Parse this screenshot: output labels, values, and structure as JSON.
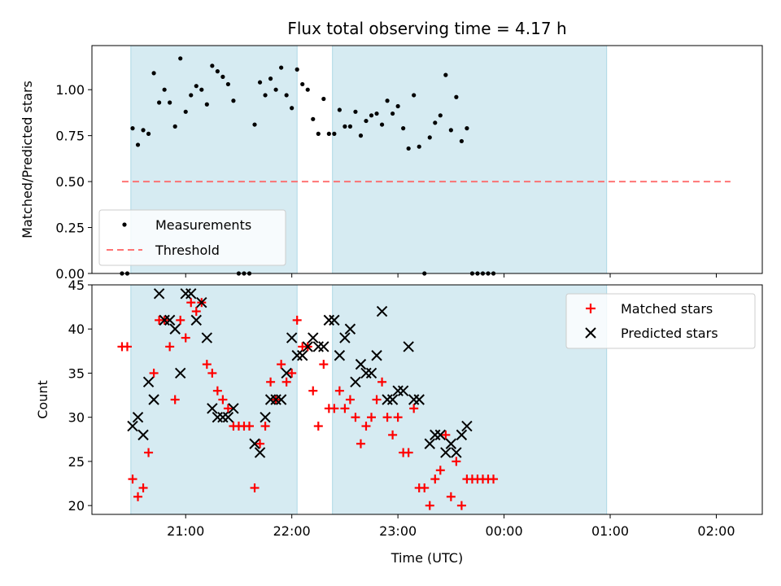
{
  "chart_data": {
    "title": "Flux total observing time = 4.17 h",
    "xlabel": "Time (UTC)",
    "x_unit": "hours UTC (values past 24 are after midnight)",
    "xlim": [
      "20:07",
      "02:26"
    ],
    "x_ticks": [
      {
        "t": "21:00",
        "label": "21:00"
      },
      {
        "t": "22:00",
        "label": "22:00"
      },
      {
        "t": "23:00",
        "label": "23:00"
      },
      {
        "t": "00:00",
        "label": "00:00"
      },
      {
        "t": "01:00",
        "label": "01:00"
      },
      {
        "t": "02:00",
        "label": "02:00"
      }
    ],
    "shaded_intervals": [
      {
        "start": "20:29",
        "end": "22:03",
        "color": "#add8e6"
      },
      {
        "start": "22:23",
        "end": "00:58",
        "color": "#add8e6"
      }
    ],
    "panels": [
      {
        "type": "scatter",
        "ylabel": "Matched/Predicted stars",
        "ylim": [
          0,
          1.24
        ],
        "y_ticks": [
          "0.00",
          "0.25",
          "0.50",
          "0.75",
          "1.00"
        ],
        "legend_position": "lower-left",
        "threshold": {
          "name": "Threshold",
          "y": 0.5,
          "x_start": "20:24",
          "x_end": "02:08",
          "color": "#ff6666"
        },
        "series": [
          {
            "name": "Measurements",
            "marker": "dot",
            "color": "#000000",
            "points": [
              [
                "20:24",
                0.0
              ],
              [
                "20:27",
                0.0
              ],
              [
                "20:30",
                0.79
              ],
              [
                "20:33",
                0.7
              ],
              [
                "20:36",
                0.78
              ],
              [
                "20:39",
                0.76
              ],
              [
                "20:42",
                1.09
              ],
              [
                "20:45",
                0.93
              ],
              [
                "20:48",
                1.0
              ],
              [
                "20:51",
                0.93
              ],
              [
                "20:54",
                0.8
              ],
              [
                "20:57",
                1.17
              ],
              [
                "21:00",
                0.88
              ],
              [
                "21:03",
                0.97
              ],
              [
                "21:06",
                1.02
              ],
              [
                "21:09",
                1.0
              ],
              [
                "21:12",
                0.92
              ],
              [
                "21:15",
                1.13
              ],
              [
                "21:18",
                1.1
              ],
              [
                "21:21",
                1.07
              ],
              [
                "21:24",
                1.03
              ],
              [
                "21:27",
                0.94
              ],
              [
                "21:30",
                0.0
              ],
              [
                "21:33",
                0.0
              ],
              [
                "21:36",
                0.0
              ],
              [
                "21:39",
                0.81
              ],
              [
                "21:42",
                1.04
              ],
              [
                "21:45",
                0.97
              ],
              [
                "21:48",
                1.06
              ],
              [
                "21:51",
                1.0
              ],
              [
                "21:54",
                1.12
              ],
              [
                "21:57",
                0.97
              ],
              [
                "22:00",
                0.9
              ],
              [
                "22:03",
                1.11
              ],
              [
                "22:06",
                1.03
              ],
              [
                "22:09",
                1.0
              ],
              [
                "22:12",
                0.84
              ],
              [
                "22:15",
                0.76
              ],
              [
                "22:18",
                0.95
              ],
              [
                "22:21",
                0.76
              ],
              [
                "22:24",
                0.76
              ],
              [
                "22:27",
                0.89
              ],
              [
                "22:30",
                0.8
              ],
              [
                "22:33",
                0.8
              ],
              [
                "22:36",
                0.88
              ],
              [
                "22:39",
                0.75
              ],
              [
                "22:42",
                0.83
              ],
              [
                "22:45",
                0.86
              ],
              [
                "22:48",
                0.87
              ],
              [
                "22:51",
                0.81
              ],
              [
                "22:54",
                0.94
              ],
              [
                "22:57",
                0.87
              ],
              [
                "23:00",
                0.91
              ],
              [
                "23:03",
                0.79
              ],
              [
                "23:06",
                0.68
              ],
              [
                "23:09",
                0.97
              ],
              [
                "23:12",
                0.69
              ],
              [
                "23:15",
                0.0
              ],
              [
                "23:18",
                0.74
              ],
              [
                "23:21",
                0.82
              ],
              [
                "23:24",
                0.86
              ],
              [
                "23:27",
                1.08
              ],
              [
                "23:30",
                0.78
              ],
              [
                "23:33",
                0.96
              ],
              [
                "23:36",
                0.72
              ],
              [
                "23:39",
                0.79
              ],
              [
                "23:42",
                0.0
              ],
              [
                "23:45",
                0.0
              ],
              [
                "23:48",
                0.0
              ],
              [
                "23:51",
                0.0
              ],
              [
                "23:54",
                0.0
              ]
            ]
          }
        ]
      },
      {
        "type": "scatter",
        "ylabel": "Count",
        "ylim": [
          19,
          45
        ],
        "y_ticks": [
          "20",
          "25",
          "30",
          "35",
          "40",
          "45"
        ],
        "legend_position": "upper-right",
        "series": [
          {
            "name": "Matched stars",
            "marker": "plus",
            "color": "#ff0000",
            "points": [
              [
                "20:24",
                38
              ],
              [
                "20:27",
                38
              ],
              [
                "20:30",
                23
              ],
              [
                "20:33",
                21
              ],
              [
                "20:36",
                22
              ],
              [
                "20:39",
                26
              ],
              [
                "20:42",
                35
              ],
              [
                "20:45",
                41
              ],
              [
                "20:48",
                41
              ],
              [
                "20:51",
                38
              ],
              [
                "20:54",
                32
              ],
              [
                "20:57",
                41
              ],
              [
                "21:00",
                39
              ],
              [
                "21:03",
                43
              ],
              [
                "21:06",
                42
              ],
              [
                "21:09",
                43
              ],
              [
                "21:12",
                36
              ],
              [
                "21:15",
                35
              ],
              [
                "21:18",
                33
              ],
              [
                "21:21",
                32
              ],
              [
                "21:24",
                31
              ],
              [
                "21:27",
                29
              ],
              [
                "21:30",
                29
              ],
              [
                "21:33",
                29
              ],
              [
                "21:36",
                29
              ],
              [
                "21:39",
                22
              ],
              [
                "21:42",
                27
              ],
              [
                "21:45",
                29
              ],
              [
                "21:48",
                34
              ],
              [
                "21:51",
                32
              ],
              [
                "21:54",
                36
              ],
              [
                "21:57",
                34
              ],
              [
                "22:00",
                35
              ],
              [
                "22:03",
                41
              ],
              [
                "22:06",
                38
              ],
              [
                "22:09",
                38
              ],
              [
                "22:12",
                33
              ],
              [
                "22:15",
                29
              ],
              [
                "22:18",
                36
              ],
              [
                "22:21",
                31
              ],
              [
                "22:24",
                31
              ],
              [
                "22:27",
                33
              ],
              [
                "22:30",
                31
              ],
              [
                "22:33",
                32
              ],
              [
                "22:36",
                30
              ],
              [
                "22:39",
                27
              ],
              [
                "22:42",
                29
              ],
              [
                "22:45",
                30
              ],
              [
                "22:48",
                32
              ],
              [
                "22:51",
                34
              ],
              [
                "22:54",
                30
              ],
              [
                "22:57",
                28
              ],
              [
                "23:00",
                30
              ],
              [
                "23:03",
                26
              ],
              [
                "23:06",
                26
              ],
              [
                "23:09",
                31
              ],
              [
                "23:12",
                22
              ],
              [
                "23:15",
                22
              ],
              [
                "23:18",
                20
              ],
              [
                "23:21",
                23
              ],
              [
                "23:24",
                24
              ],
              [
                "23:27",
                28
              ],
              [
                "23:30",
                21
              ],
              [
                "23:33",
                25
              ],
              [
                "23:36",
                20
              ],
              [
                "23:39",
                23
              ],
              [
                "23:42",
                23
              ],
              [
                "23:45",
                23
              ],
              [
                "23:48",
                23
              ],
              [
                "23:51",
                23
              ],
              [
                "23:54",
                23
              ]
            ]
          },
          {
            "name": "Predicted stars",
            "marker": "x",
            "color": "#000000",
            "points": [
              [
                "20:30",
                29
              ],
              [
                "20:33",
                30
              ],
              [
                "20:36",
                28
              ],
              [
                "20:39",
                34
              ],
              [
                "20:42",
                32
              ],
              [
                "20:45",
                44
              ],
              [
                "20:48",
                41
              ],
              [
                "20:51",
                41
              ],
              [
                "20:54",
                40
              ],
              [
                "20:57",
                35
              ],
              [
                "21:00",
                44
              ],
              [
                "21:03",
                44
              ],
              [
                "21:06",
                41
              ],
              [
                "21:09",
                43
              ],
              [
                "21:12",
                39
              ],
              [
                "21:15",
                31
              ],
              [
                "21:18",
                30
              ],
              [
                "21:21",
                30
              ],
              [
                "21:24",
                30
              ],
              [
                "21:27",
                31
              ],
              [
                "21:39",
                27
              ],
              [
                "21:42",
                26
              ],
              [
                "21:45",
                30
              ],
              [
                "21:48",
                32
              ],
              [
                "21:51",
                32
              ],
              [
                "21:54",
                32
              ],
              [
                "21:57",
                35
              ],
              [
                "22:00",
                39
              ],
              [
                "22:03",
                37
              ],
              [
                "22:06",
                37
              ],
              [
                "22:09",
                38
              ],
              [
                "22:12",
                39
              ],
              [
                "22:15",
                38
              ],
              [
                "22:18",
                38
              ],
              [
                "22:21",
                41
              ],
              [
                "22:24",
                41
              ],
              [
                "22:27",
                37
              ],
              [
                "22:30",
                39
              ],
              [
                "22:33",
                40
              ],
              [
                "22:36",
                34
              ],
              [
                "22:39",
                36
              ],
              [
                "22:42",
                35
              ],
              [
                "22:45",
                35
              ],
              [
                "22:48",
                37
              ],
              [
                "22:51",
                42
              ],
              [
                "22:54",
                32
              ],
              [
                "22:57",
                32
              ],
              [
                "23:00",
                33
              ],
              [
                "23:03",
                33
              ],
              [
                "23:06",
                38
              ],
              [
                "23:09",
                32
              ],
              [
                "23:12",
                32
              ],
              [
                "23:18",
                27
              ],
              [
                "23:21",
                28
              ],
              [
                "23:24",
                28
              ],
              [
                "23:27",
                26
              ],
              [
                "23:30",
                27
              ],
              [
                "23:33",
                26
              ],
              [
                "23:36",
                28
              ],
              [
                "23:39",
                29
              ]
            ]
          }
        ]
      }
    ]
  }
}
